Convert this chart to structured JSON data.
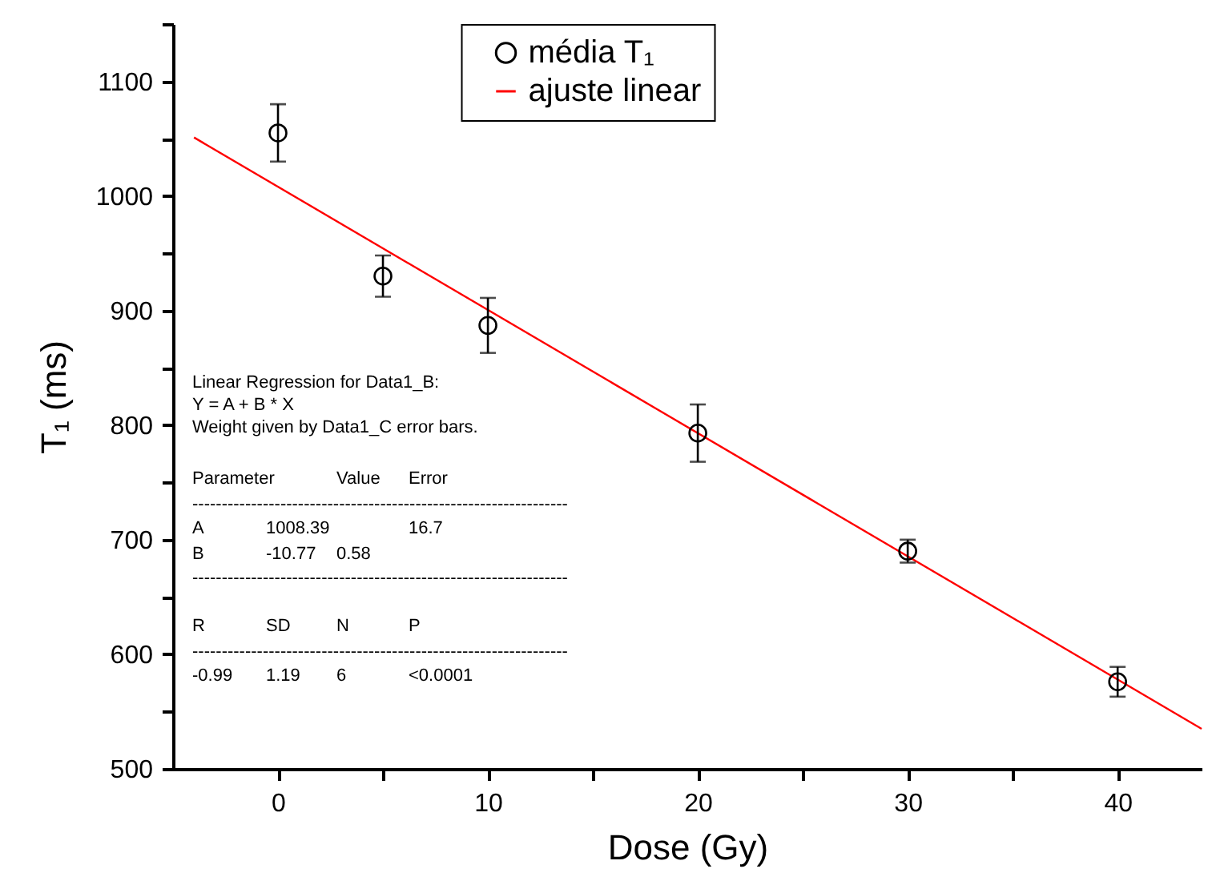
{
  "chart_data": {
    "type": "line",
    "xlabel": "Dose (Gy)",
    "ylabel": "T₁ (ms)",
    "xlim": [
      -5,
      44
    ],
    "ylim": [
      500,
      1150
    ],
    "xticks": [
      0,
      10,
      20,
      30,
      40,
      {
        "value": 5,
        "label": null
      },
      {
        "value": 15,
        "label": null
      },
      {
        "value": 25,
        "label": null
      },
      {
        "value": 35,
        "label": null
      }
    ],
    "yticks": [
      500,
      600,
      700,
      800,
      900,
      1000,
      1100,
      {
        "value": 550,
        "label": null
      },
      {
        "value": 650,
        "label": null
      },
      {
        "value": 750,
        "label": null
      },
      {
        "value": 850,
        "label": null
      },
      {
        "value": 950,
        "label": null
      },
      {
        "value": 1050,
        "label": null
      },
      {
        "value": 1150,
        "label": null
      }
    ],
    "grid": false,
    "legend": "top",
    "series": [
      {
        "name": "média T₁",
        "type": "scatter",
        "marker": "circle",
        "color": "#000000",
        "x": [
          0,
          5,
          10,
          20,
          30,
          40
        ],
        "values": [
          1055,
          930,
          887,
          793,
          690,
          576
        ],
        "errors": [
          25,
          18,
          24,
          25,
          10,
          13
        ]
      },
      {
        "name": "ajuste linear",
        "color": "#ff0000",
        "line_style": "solid",
        "x": [
          -4,
          44
        ],
        "values": [
          1051,
          535
        ]
      }
    ],
    "annotations": [
      "Linear Regression for Data1_B:",
      "Y = A + B * X",
      "Weight given by Data1_C error bars.",
      "Parameter",
      "Value",
      "Error",
      "----------------------------------------------------------------",
      "A",
      "1008.39",
      "16.7",
      "B",
      "-10.77",
      "0.58",
      "----------------------------------------------------------------",
      "R",
      "SD",
      "N",
      "P",
      "----------------------------------------------------------------",
      "-0.99",
      "1.19",
      "6",
      "<0.0001"
    ]
  }
}
